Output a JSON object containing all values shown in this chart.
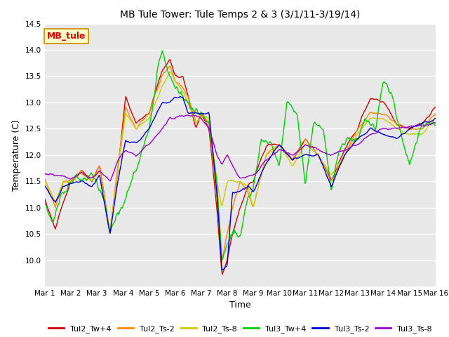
{
  "title": "MB Tule Tower: Tule Temps 2 & 3 (3/1/11-3/19/14)",
  "xlabel": "Time",
  "ylabel": "Temperature (C)",
  "ylim": [
    9.5,
    14.5
  ],
  "xlim": [
    0,
    15
  ],
  "yticks": [
    10.0,
    10.5,
    11.0,
    11.5,
    12.0,
    12.5,
    13.0,
    13.5,
    14.0,
    14.5
  ],
  "xtick_labels": [
    "Mar 1",
    "Mar 2",
    "Mar 3",
    "Mar 4",
    "Mar 5",
    "Mar 6",
    "Mar 7",
    "Mar 8",
    "Mar 9",
    "Mar 10",
    "Mar 11",
    "Mar 12",
    "Mar 13",
    "Mar 14",
    "Mar 15",
    "Mar 16"
  ],
  "xtick_positions": [
    0,
    1,
    2,
    3,
    4,
    5,
    6,
    7,
    8,
    9,
    10,
    11,
    12,
    13,
    14,
    15
  ],
  "plot_bg_color": "#e8e8e8",
  "grid_color": "#ffffff",
  "series": [
    {
      "label": "Tul2_Tw+4",
      "color": "#cc0000"
    },
    {
      "label": "Tul2_Ts-2",
      "color": "#ff8800"
    },
    {
      "label": "Tul2_Ts-8",
      "color": "#cccc00"
    },
    {
      "label": "Tul3_Tw+4",
      "color": "#00cc00"
    },
    {
      "label": "Tul3_Ts-2",
      "color": "#0000cc"
    },
    {
      "label": "Tul3_Ts-8",
      "color": "#9900cc"
    }
  ],
  "inset_label": "MB_tule",
  "inset_label_color": "#cc0000",
  "inset_bg_color": "#ffffcc",
  "inset_border_color": "#cc8800",
  "title_fontsize": 10,
  "axis_fontsize": 9,
  "tick_fontsize": 7.5,
  "legend_fontsize": 8
}
